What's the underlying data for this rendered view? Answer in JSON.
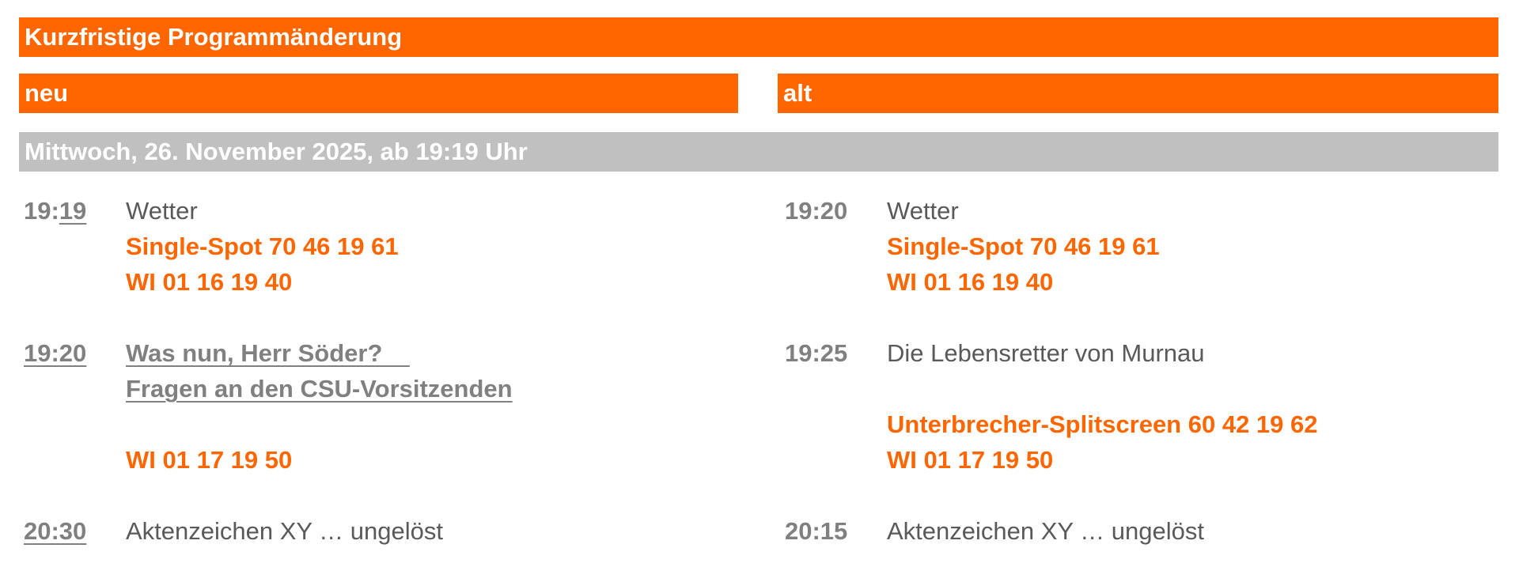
{
  "header": {
    "title": "Kurzfristige Programmänderung",
    "new_label": "neu",
    "old_label": "alt",
    "date": "Mittwoch, 26. November 2025, ab 19:19 Uhr"
  },
  "colors": {
    "accent": "#ff6600",
    "date_bar": "#c0c0c0",
    "text": "#595959",
    "time": "#808080"
  },
  "neu": [
    {
      "time_prefix": "19:",
      "time_suffix": "19",
      "title": "Wetter",
      "codes": [
        "Single-Spot 70 46 19 61",
        "WI 01 16 19 40"
      ]
    },
    {
      "time": "19:20",
      "title_lines": [
        "Was nun, Herr Söder?    ",
        "Fragen an den CSU-Vorsitzenden"
      ],
      "codes": [
        "WI 01 17 19 50"
      ]
    },
    {
      "time": "20:30",
      "title": "Aktenzeichen XY … ungelöst"
    }
  ],
  "alt": [
    {
      "time": "19:20",
      "title": "Wetter",
      "codes": [
        "Single-Spot 70 46 19 61",
        "WI 01 16 19 40"
      ]
    },
    {
      "time": "19:25",
      "title": "Die Lebensretter von Murnau",
      "codes": [
        "Unterbrecher-Splitscreen 60 42 19 62",
        "WI 01 17 19 50"
      ]
    },
    {
      "time": "20:15",
      "title": "Aktenzeichen XY … ungelöst"
    }
  ]
}
